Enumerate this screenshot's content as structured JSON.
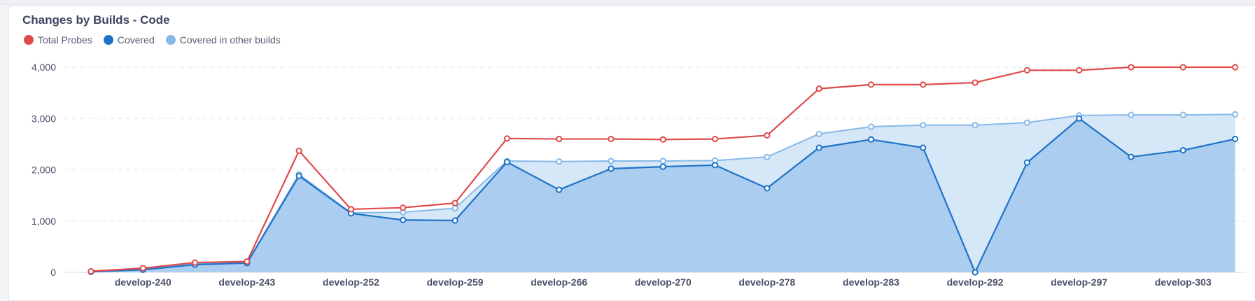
{
  "title": "Changes by Builds - Code",
  "legend": [
    {
      "label": "Total Probes",
      "color": "#e04b4b"
    },
    {
      "label": "Covered",
      "color": "#1e73c8"
    },
    {
      "label": "Covered in other builds",
      "color": "#86b9e8"
    }
  ],
  "chart_data": {
    "type": "area",
    "title": "Changes by Builds - Code",
    "ylim": [
      0,
      4000
    ],
    "yticks": [
      0,
      1000,
      2000,
      3000,
      4000
    ],
    "ytick_labels": [
      "0",
      "1,000",
      "2,000",
      "3,000",
      "4,000"
    ],
    "x_tick_labels": [
      "develop-240",
      "develop-243",
      "develop-252",
      "develop-259",
      "develop-266",
      "develop-270",
      "develop-278",
      "develop-283",
      "develop-292",
      "develop-297",
      "develop-303"
    ],
    "x_tick_positions": [
      1,
      3,
      5,
      7,
      9,
      11,
      13,
      15,
      17,
      19,
      21
    ],
    "point_count": 23,
    "grid": true,
    "legend_position": "top-left",
    "series": [
      {
        "name": "Total Probes",
        "color": "#e04b4b",
        "values": [
          20,
          80,
          190,
          210,
          2370,
          1230,
          1260,
          1350,
          2610,
          2600,
          2600,
          2590,
          2600,
          2670,
          3580,
          3660,
          3660,
          3700,
          3940,
          3940,
          4000,
          4000,
          4000
        ]
      },
      {
        "name": "Covered in other builds",
        "color": "#86b9e8",
        "values": [
          10,
          60,
          160,
          190,
          1910,
          1160,
          1170,
          1250,
          2170,
          2160,
          2170,
          2170,
          2180,
          2250,
          2700,
          2840,
          2870,
          2870,
          2920,
          3060,
          3070,
          3070,
          3080
        ]
      },
      {
        "name": "Covered",
        "color": "#1e73c8",
        "values": [
          10,
          50,
          150,
          180,
          1880,
          1150,
          1020,
          1010,
          2150,
          1610,
          2020,
          2060,
          2090,
          1640,
          2430,
          2590,
          2430,
          0,
          2140,
          3000,
          2250,
          2380,
          2600
        ]
      }
    ]
  }
}
